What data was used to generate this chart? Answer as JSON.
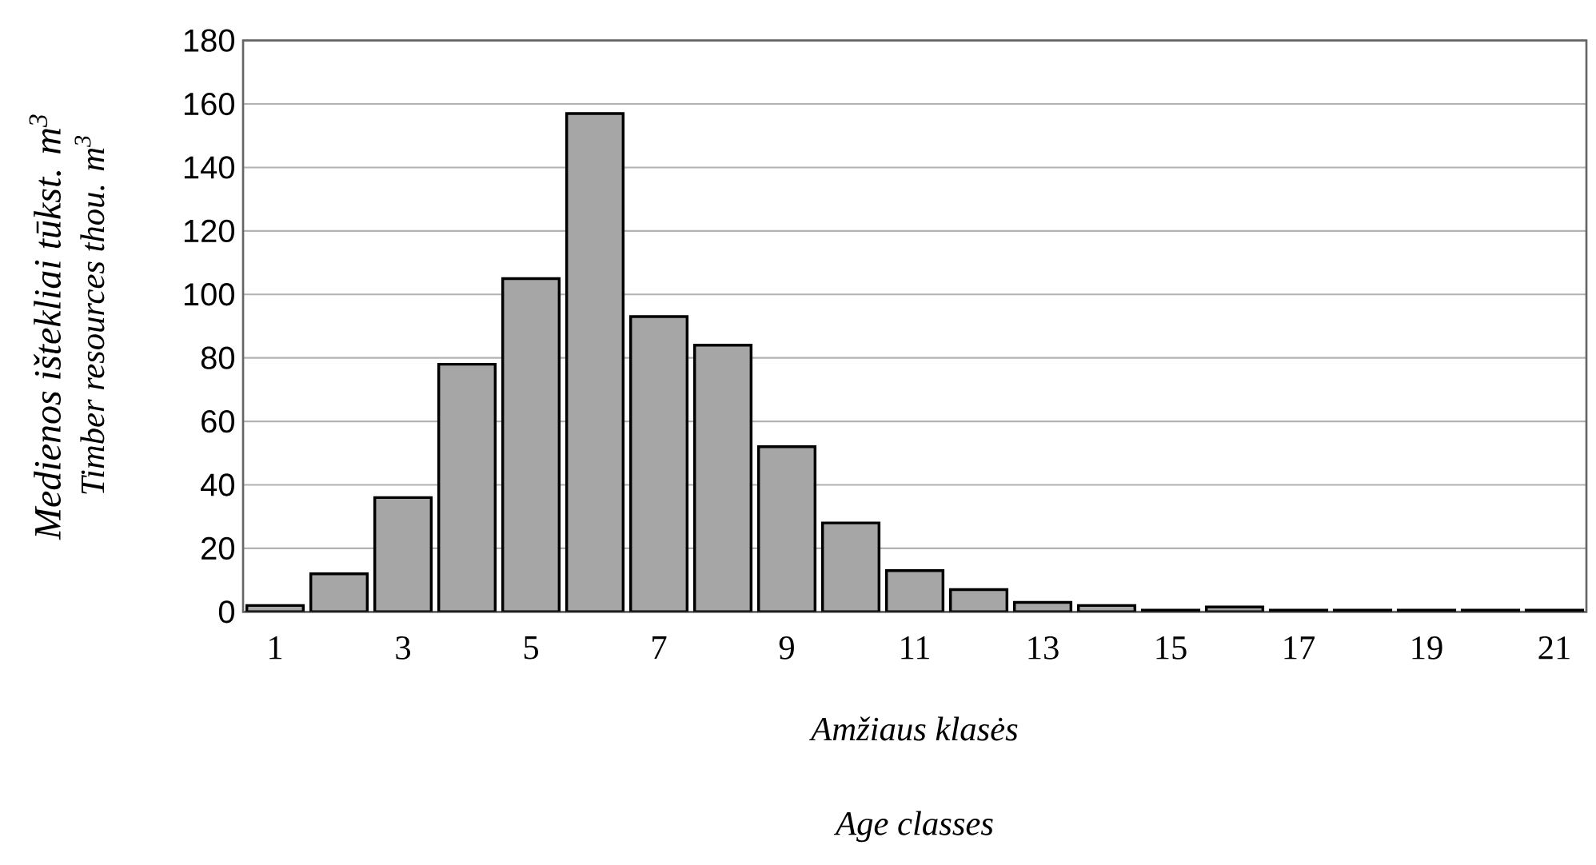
{
  "chart_data": {
    "type": "bar",
    "xlabel": "Amžiaus klasės",
    "ylabel": "Medienos ištekliai  tūkst. m$^{3}$",
    "annotations": [
      "Timber resources  thou. m$^{3}$",
      "Age classes"
    ],
    "categories": [
      "1",
      null,
      "3",
      null,
      "5",
      null,
      "7",
      null,
      "9",
      null,
      "11",
      null,
      "13",
      null,
      "15",
      null,
      "17",
      null,
      "19",
      null,
      "21"
    ],
    "values": [
      2,
      12,
      36,
      78,
      105,
      157,
      93,
      84,
      52,
      28,
      13,
      7,
      3,
      2,
      0.5,
      1.5,
      0.5,
      0.5,
      0.5,
      0.5,
      0.5
    ],
    "color": "#a6a6a6",
    "ylim": [
      0,
      180
    ],
    "yticks": [
      0,
      20,
      40,
      60,
      80,
      100,
      120,
      140,
      160,
      180
    ],
    "grid": "y"
  }
}
